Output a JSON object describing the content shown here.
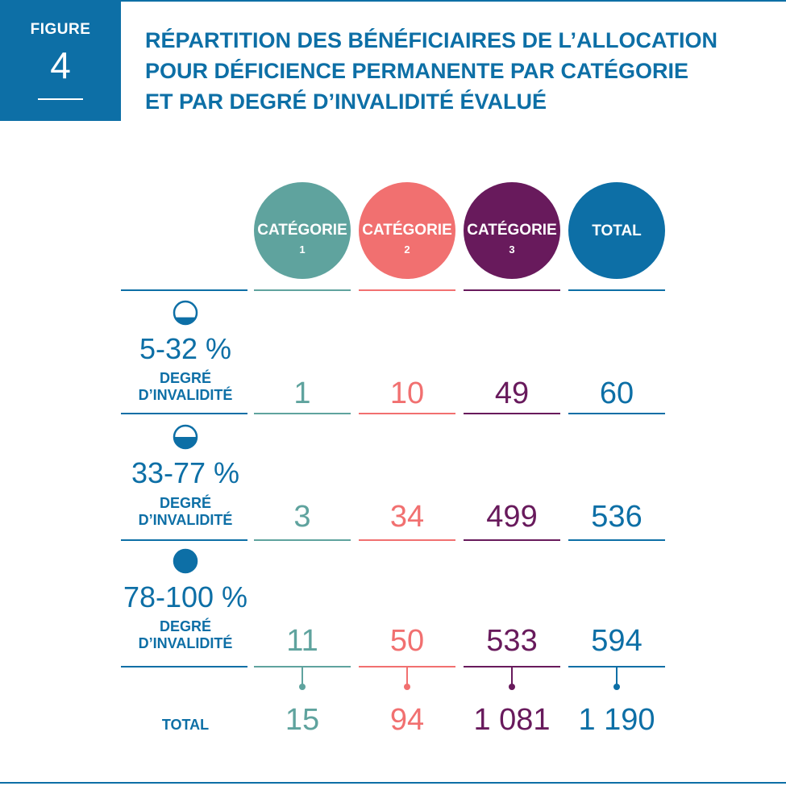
{
  "figure": {
    "label": "FIGURE",
    "number": "4"
  },
  "title_lines": [
    "RÉPARTITION DES BÉNÉFICIAIRES DE L’ALLOCATION",
    "POUR DÉFICIENCE PERMANENTE PAR CATÉGORIE",
    "ET PAR DEGRÉ D’INVALIDITÉ ÉVALUÉ"
  ],
  "colors": {
    "blue": "#0d6fa6",
    "cat1": "#5fa39e",
    "cat2": "#f17070",
    "cat3": "#681a5c"
  },
  "chart_data": {
    "type": "table",
    "title": "RÉPARTITION DES BÉNÉFICIAIRES DE L’ALLOCATION POUR DÉFICIENCE PERMANENTE PAR CATÉGORIE ET PAR DEGRÉ D’INVALIDITÉ ÉVALUÉ",
    "columns": [
      {
        "line1": "CATÉGORIE",
        "line2": "1"
      },
      {
        "line1": "CATÉGORIE",
        "line2": "2"
      },
      {
        "line1": "CATÉGORIE",
        "line2": "3"
      },
      {
        "line1": "TOTAL",
        "line2": ""
      }
    ],
    "rows": [
      {
        "range": "5-32 %",
        "fill": "third",
        "label1": "DEGRÉ",
        "label2": "D’INVALIDITÉ",
        "cells": [
          "1",
          "10",
          "49",
          "60"
        ]
      },
      {
        "range": "33-77 %",
        "fill": "half",
        "label1": "DEGRÉ",
        "label2": "D’INVALIDITÉ",
        "cells": [
          "3",
          "34",
          "499",
          "536"
        ]
      },
      {
        "range": "78-100 %",
        "fill": "full",
        "label1": "DEGRÉ",
        "label2": "D’INVALIDITÉ",
        "cells": [
          "11",
          "50",
          "533",
          "594"
        ]
      }
    ],
    "total": {
      "label": "TOTAL",
      "cells": [
        "15",
        "94",
        "1 081",
        "1 190"
      ]
    }
  }
}
